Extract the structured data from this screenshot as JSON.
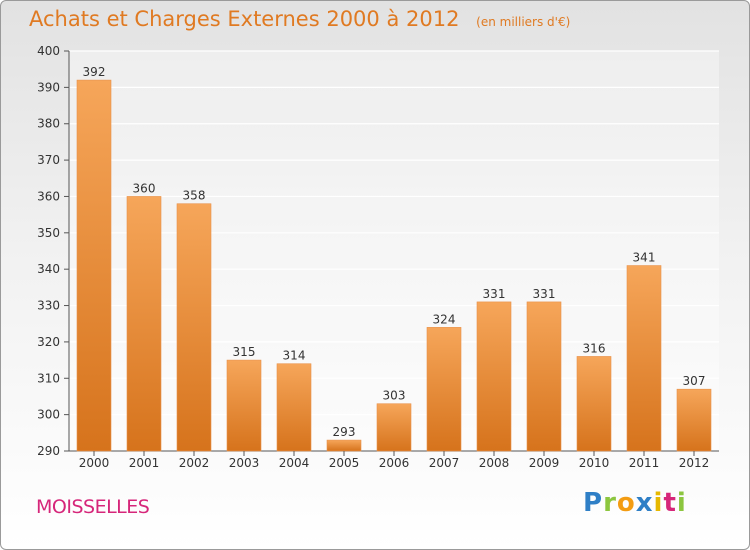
{
  "header": {
    "title": "Achats et Charges Externes 2000 à 2012",
    "subtitle": "(en milliers d'€)"
  },
  "footer": {
    "commune": "MOISSELLES",
    "logo_text": "Proxiti"
  },
  "colors": {
    "bar_top": "#f6a65a",
    "bar_bottom": "#d6731c",
    "title": "#e07a22",
    "commune": "#d6267a"
  },
  "chart_data": {
    "type": "bar",
    "title": "Achats et Charges Externes 2000 à 2012",
    "subtitle": "(en milliers d'€)",
    "categories": [
      "2000",
      "2001",
      "2002",
      "2003",
      "2004",
      "2005",
      "2006",
      "2007",
      "2008",
      "2009",
      "2010",
      "2011",
      "2012"
    ],
    "values": [
      392,
      360,
      358,
      315,
      314,
      293,
      303,
      324,
      331,
      331,
      316,
      341,
      307
    ],
    "ylim": [
      290,
      400
    ],
    "yticks": [
      290,
      300,
      310,
      320,
      330,
      340,
      350,
      360,
      370,
      380,
      390,
      400
    ],
    "grid": true,
    "data_labels": true
  }
}
